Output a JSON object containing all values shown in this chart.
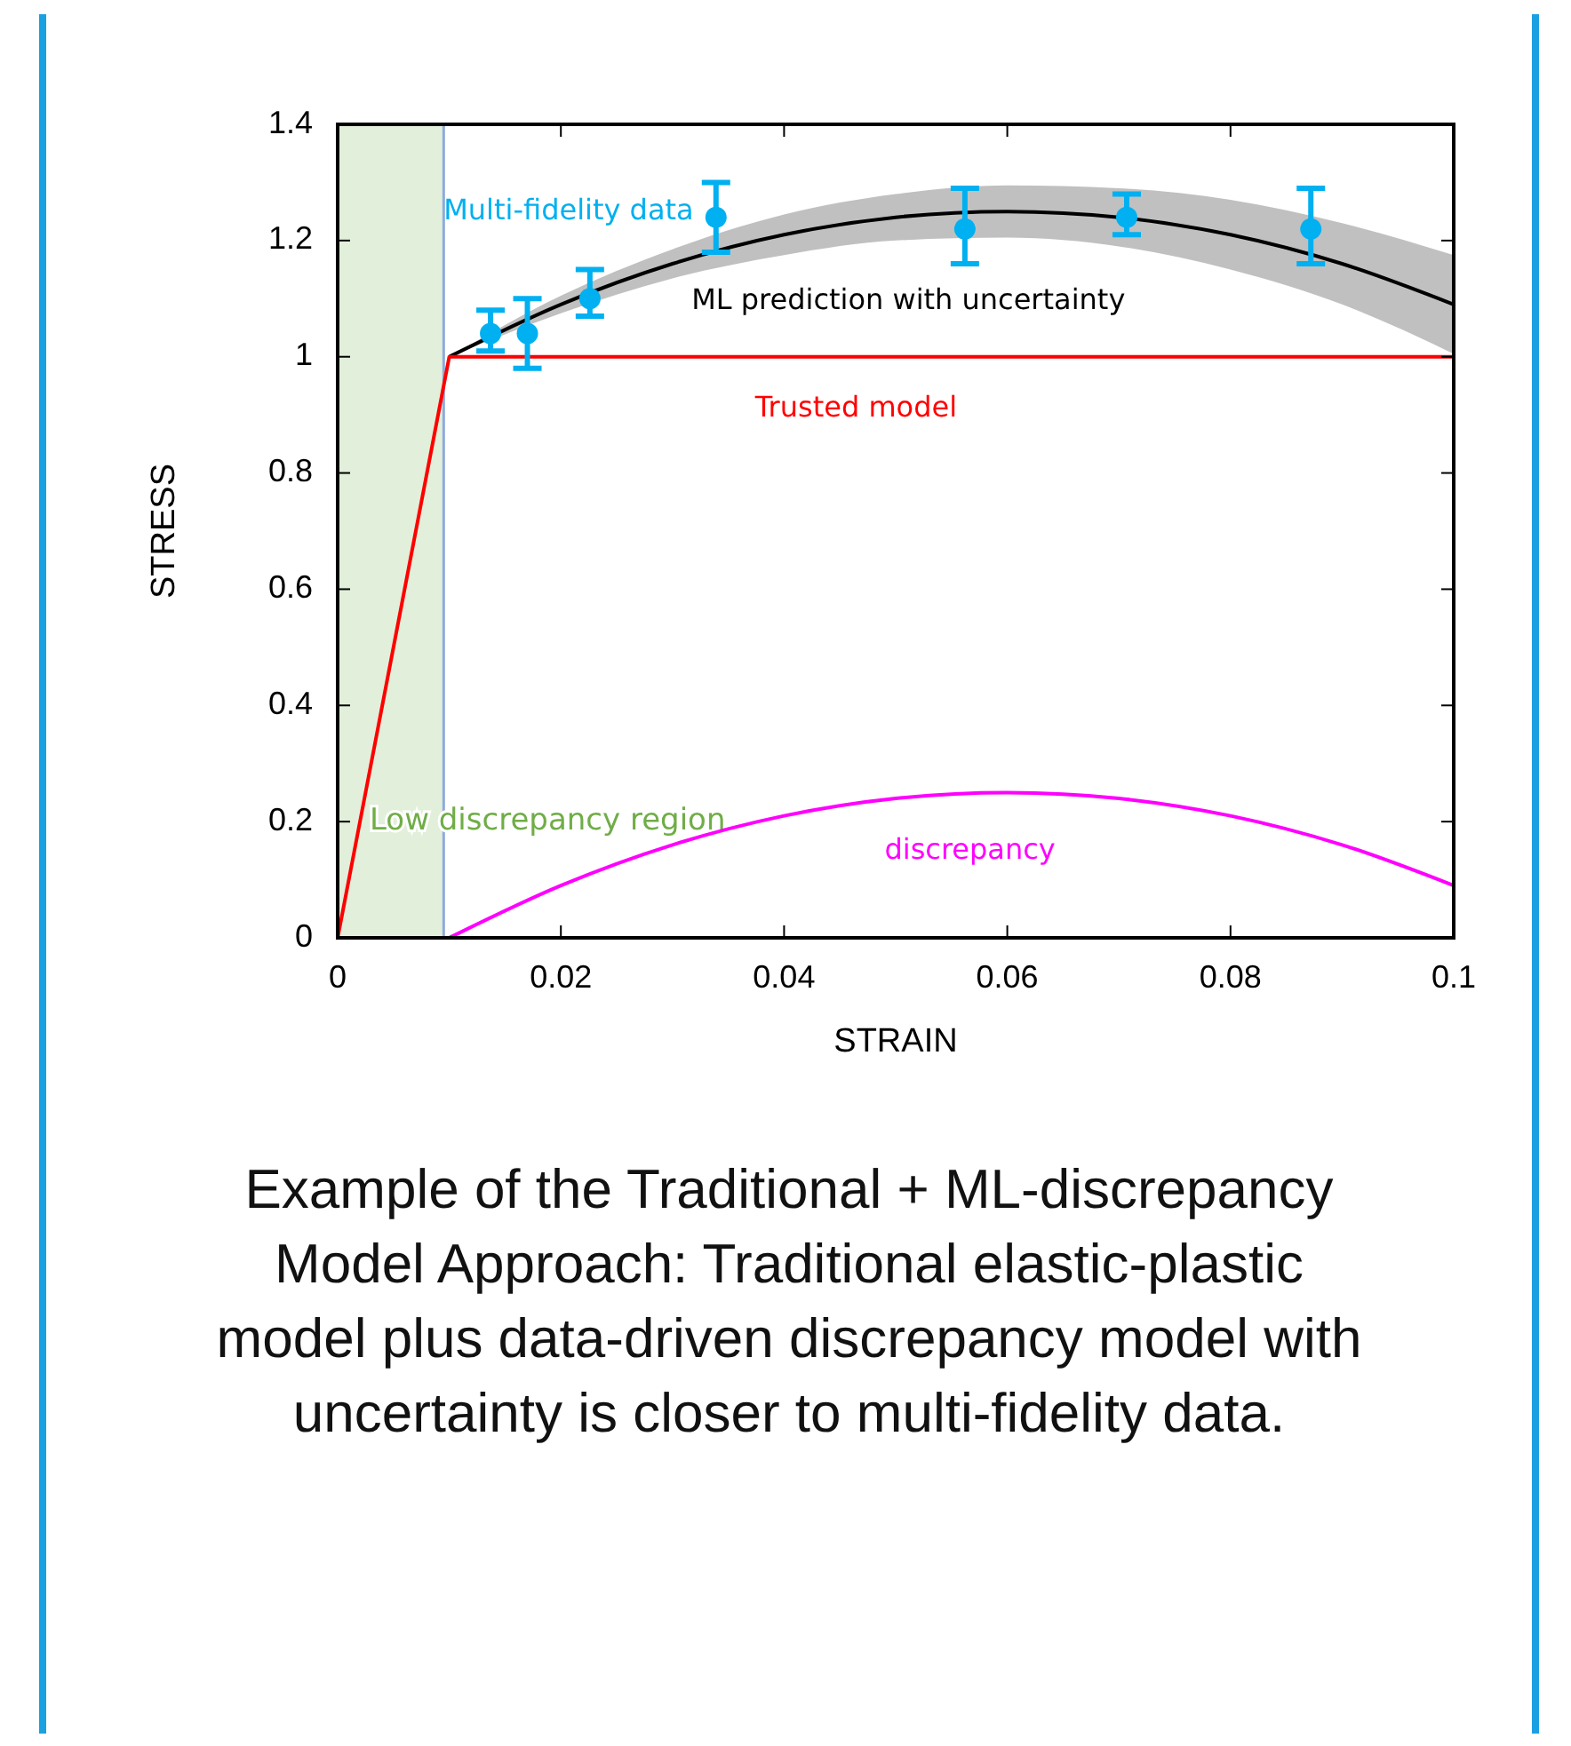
{
  "chart_data": {
    "type": "scatter",
    "xlabel": "STRAIN",
    "ylabel": "STRESS",
    "xlim": [
      0,
      0.1
    ],
    "ylim": [
      0,
      1.4
    ],
    "xticks": [
      0,
      0.02,
      0.04,
      0.06,
      0.08,
      0.1
    ],
    "yticks": [
      0,
      0.2,
      0.4,
      0.6,
      0.8,
      1,
      1.2,
      1.4
    ],
    "grid": false,
    "bands": [
      {
        "axis": "x",
        "from": 0,
        "to": 0.0095,
        "label": "Low discrepancy region",
        "color": "#e2efda"
      }
    ],
    "series": [
      {
        "name": "Multi-fidelity data",
        "type": "scatter",
        "color": "#00b0f0",
        "marker": "circle",
        "x": [
          0.0137,
          0.017,
          0.0226,
          0.0339,
          0.0562,
          0.0707,
          0.0872
        ],
        "values": [
          1.04,
          1.04,
          1.1,
          1.24,
          1.22,
          1.24,
          1.22
        ],
        "errors": [
          [
            1.01,
            1.08
          ],
          [
            0.98,
            1.1
          ],
          [
            1.07,
            1.15
          ],
          [
            1.18,
            1.3
          ],
          [
            1.16,
            1.29
          ],
          [
            1.21,
            1.28
          ],
          [
            1.16,
            1.29
          ]
        ]
      },
      {
        "name": "ML prediction with uncertainty",
        "type": "line",
        "color": "#000000",
        "marker": "none",
        "x": [
          0.01,
          0.02,
          0.03,
          0.04,
          0.05,
          0.06,
          0.07,
          0.08,
          0.09,
          0.1
        ],
        "values": [
          1,
          1.09,
          1.16,
          1.21,
          1.24,
          1.25,
          1.24,
          1.21,
          1.16,
          1.09
        ],
        "lower": [
          1,
          1.075,
          1.135,
          1.175,
          1.2,
          1.205,
          1.19,
          1.15,
          1.09,
          1.005
        ],
        "upper": [
          1,
          1.105,
          1.185,
          1.245,
          1.28,
          1.295,
          1.29,
          1.27,
          1.23,
          1.175
        ]
      },
      {
        "name": "Trusted model",
        "type": "line",
        "color": "#ff0000",
        "marker": "none",
        "x": [
          0,
          0.01,
          0.1
        ],
        "values": [
          0,
          1,
          1
        ]
      },
      {
        "name": "discrepancy",
        "type": "line",
        "color": "#ff00ff",
        "marker": "none",
        "x": [
          0.01,
          0.02,
          0.03,
          0.04,
          0.05,
          0.06,
          0.07,
          0.08,
          0.09,
          0.1
        ],
        "values": [
          0,
          0.09,
          0.16,
          0.21,
          0.24,
          0.25,
          0.24,
          0.21,
          0.16,
          0.09
        ]
      }
    ],
    "annotations": [
      "Example of the Traditional + ML-discrepancy Model Approach: Traditional elastic-plastic model plus data-driven discrepancy model with uncertainty is closer to multi-fidelity data."
    ]
  }
}
